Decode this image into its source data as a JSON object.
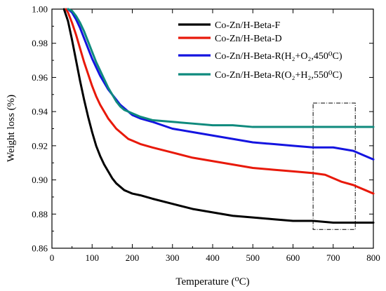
{
  "chart_data": {
    "type": "line",
    "xlabel": "Temperature (⁰C)",
    "ylabel": "Weight loss (%)",
    "xlim": [
      0,
      800
    ],
    "ylim": [
      0.86,
      1.0
    ],
    "xticks": [
      "0",
      "100",
      "200",
      "300",
      "400",
      "500",
      "600",
      "700",
      "800"
    ],
    "yticks": [
      "0.86",
      "0.88",
      "0.90",
      "0.92",
      "0.94",
      "0.96",
      "0.98",
      "1.00"
    ],
    "grid": false,
    "legend_position": "top-right",
    "series": [
      {
        "name": "Co-Zn/H-Beta-F",
        "color": "#000000",
        "x": [
          30,
          40,
          50,
          60,
          70,
          80,
          90,
          100,
          110,
          120,
          130,
          140,
          150,
          160,
          170,
          180,
          190,
          200,
          220,
          250,
          300,
          350,
          400,
          450,
          500,
          550,
          600,
          650,
          700,
          750,
          800
        ],
        "y": [
          1.0,
          0.993,
          0.982,
          0.97,
          0.958,
          0.947,
          0.937,
          0.928,
          0.92,
          0.914,
          0.909,
          0.905,
          0.901,
          0.898,
          0.896,
          0.894,
          0.893,
          0.892,
          0.891,
          0.889,
          0.886,
          0.883,
          0.881,
          0.879,
          0.878,
          0.877,
          0.876,
          0.876,
          0.875,
          0.875,
          0.875
        ]
      },
      {
        "name": "Co-Zn/H-Beta-D",
        "color": "#e8190a",
        "x": [
          35,
          40,
          50,
          60,
          70,
          80,
          90,
          100,
          110,
          120,
          130,
          140,
          150,
          160,
          170,
          180,
          190,
          200,
          220,
          250,
          300,
          350,
          400,
          450,
          500,
          550,
          600,
          650,
          680,
          700,
          720,
          750,
          780,
          800
        ],
        "y": [
          1.0,
          0.998,
          0.992,
          0.985,
          0.977,
          0.969,
          0.962,
          0.955,
          0.949,
          0.944,
          0.94,
          0.936,
          0.933,
          0.93,
          0.928,
          0.926,
          0.924,
          0.923,
          0.921,
          0.919,
          0.916,
          0.913,
          0.911,
          0.909,
          0.907,
          0.906,
          0.905,
          0.904,
          0.903,
          0.901,
          0.899,
          0.897,
          0.894,
          0.892
        ]
      },
      {
        "name": "Co-Zn/H-Beta-R(H₂+O₂,450⁰C)",
        "color": "#1414e0",
        "x": [
          40,
          50,
          60,
          70,
          80,
          90,
          100,
          110,
          120,
          130,
          140,
          150,
          160,
          170,
          180,
          190,
          200,
          220,
          250,
          300,
          350,
          400,
          450,
          500,
          550,
          600,
          650,
          700,
          750,
          780,
          800
        ],
        "y": [
          1.0,
          0.998,
          0.994,
          0.989,
          0.983,
          0.977,
          0.971,
          0.966,
          0.961,
          0.957,
          0.953,
          0.95,
          0.947,
          0.944,
          0.942,
          0.94,
          0.938,
          0.936,
          0.934,
          0.93,
          0.928,
          0.926,
          0.924,
          0.922,
          0.921,
          0.92,
          0.919,
          0.919,
          0.917,
          0.914,
          0.912
        ]
      },
      {
        "name": "Co-Zn/H-Beta-R(O₂+H₂,550⁰C)",
        "color": "#0f8a7d",
        "x": [
          40,
          50,
          60,
          70,
          80,
          90,
          100,
          110,
          120,
          130,
          140,
          150,
          160,
          170,
          180,
          190,
          200,
          220,
          250,
          300,
          350,
          400,
          450,
          500,
          550,
          600,
          650,
          700,
          750,
          800
        ],
        "y": [
          1.0,
          0.999,
          0.996,
          0.992,
          0.987,
          0.981,
          0.975,
          0.969,
          0.964,
          0.959,
          0.954,
          0.95,
          0.946,
          0.943,
          0.941,
          0.94,
          0.939,
          0.937,
          0.935,
          0.934,
          0.933,
          0.932,
          0.932,
          0.931,
          0.931,
          0.931,
          0.931,
          0.931,
          0.931,
          0.931
        ]
      }
    ],
    "annotations": [
      {
        "type": "dashdot-rectangle",
        "x_range": [
          650,
          755
        ],
        "y_range": [
          0.871,
          0.945
        ]
      }
    ]
  }
}
